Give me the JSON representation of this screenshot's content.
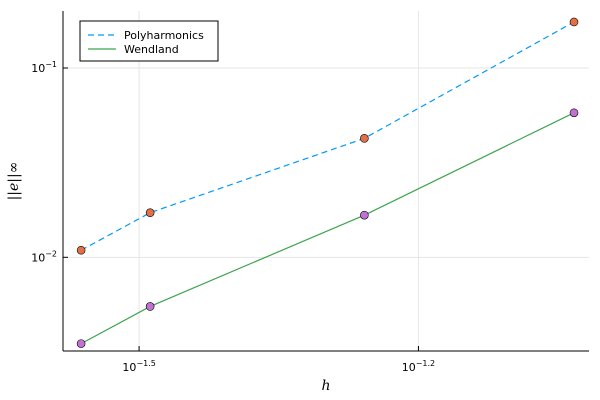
{
  "chart_data": {
    "type": "line",
    "title": "",
    "xlabel": "h",
    "ylabel": "||e||∞",
    "xscale": "log10",
    "yscale": "log10",
    "xlim": [
      0.0262,
      0.0962
    ],
    "ylim": [
      0.0032,
      0.2
    ],
    "x_ticks": [
      {
        "value": 0.031623,
        "label": "10^-1.5"
      },
      {
        "value": 0.063096,
        "label": "10^-1.2"
      }
    ],
    "y_ticks": [
      {
        "value": 0.01,
        "label": "10^-2"
      },
      {
        "value": 0.1,
        "label": "10^-1"
      }
    ],
    "grid": true,
    "legend_position": "top-left",
    "series": [
      {
        "name": "Polyharmonics",
        "line_color": "#009AFA",
        "line_style": "dashed",
        "marker_color": "#E26F46",
        "x": [
          0.0274,
          0.0325,
          0.0552,
          0.0927
        ],
        "y": [
          0.0109,
          0.0172,
          0.0425,
          0.175
        ]
      },
      {
        "name": "Wendland",
        "line_color": "#3DA44D",
        "line_style": "solid",
        "marker_color": "#C271D2",
        "x": [
          0.0274,
          0.0325,
          0.0552,
          0.0927
        ],
        "y": [
          0.0035,
          0.0055,
          0.0167,
          0.058
        ]
      }
    ]
  }
}
